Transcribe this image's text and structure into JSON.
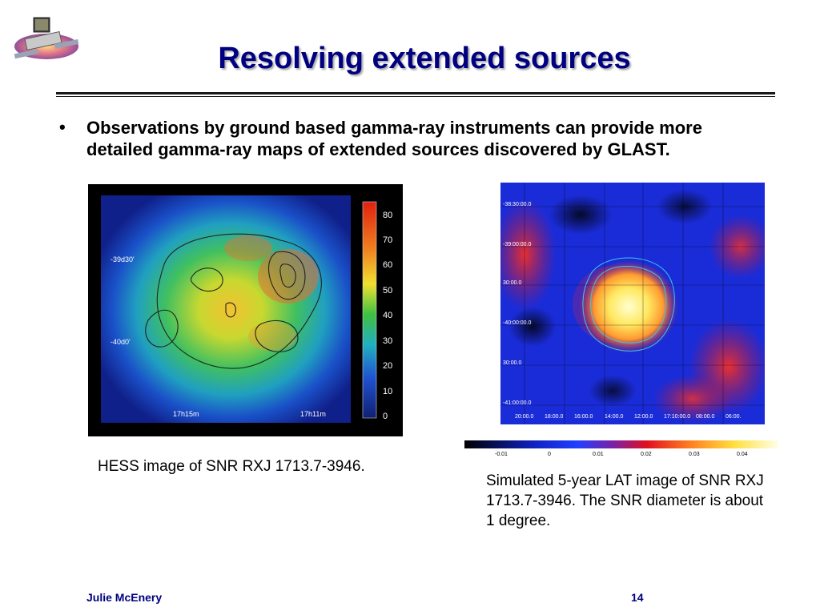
{
  "slide": {
    "title": "Resolving extended sources",
    "bullet": "Observations by ground based gamma-ray instruments can provide more detailed gamma-ray maps of extended sources discovered by GLAST.",
    "bullet_marker": "•"
  },
  "hess_image": {
    "colorbar_ticks": [
      "80",
      "70",
      "60",
      "50",
      "40",
      "30",
      "20",
      "10",
      "0"
    ],
    "dec_labels": [
      "-39d30'",
      "-40d0'"
    ],
    "ra_labels": [
      "17h15m",
      "17h11m"
    ],
    "caption": "HESS image of SNR RXJ 1713.7-3946."
  },
  "lat_image": {
    "dec_labels": [
      "-38:30:00.0",
      "-39:00:00.0",
      "30:00.0",
      "-40:00:00.0",
      "30:00.0",
      "-41:00:00.0"
    ],
    "ra_labels": [
      "20:00.0",
      "18:00.0",
      "16:00.0",
      "14:00.0",
      "12:00.0",
      "17:10:00.0",
      "08:00.0",
      "06:00."
    ],
    "colorbar_ticks": [
      "-0.01",
      "0",
      "0.01",
      "0.02",
      "0.03",
      "0.04"
    ],
    "caption": "Simulated 5-year LAT image of SNR RXJ 1713.7-3946.  The SNR diameter is about 1 degree."
  },
  "footer": {
    "author": "Julie McEnery",
    "page": "14"
  },
  "colors": {
    "title": "#000080",
    "footer": "#000080"
  }
}
